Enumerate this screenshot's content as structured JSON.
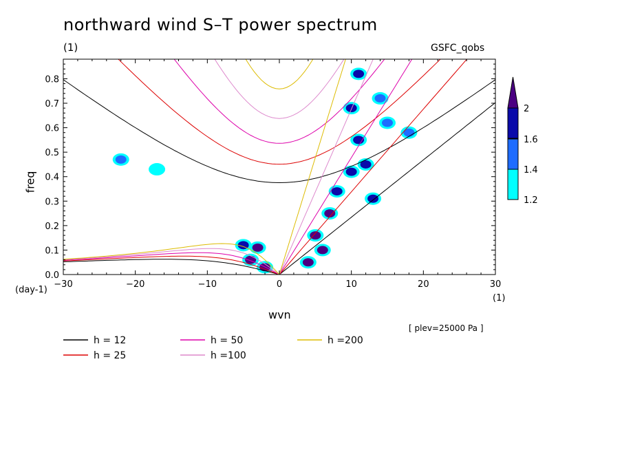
{
  "chart_data": {
    "type": "contour",
    "title": "northward wind S–T power spectrum",
    "title_units": "(1)",
    "dataset": "GSFC_qobs",
    "xlabel": "wvn",
    "x_units": "(1)",
    "ylabel": "freq",
    "y_units": "(day-1)",
    "xlim": [
      -30,
      30
    ],
    "ylim": [
      0,
      0.88
    ],
    "x_ticks": [
      -30,
      -20,
      -10,
      0,
      10,
      20,
      30
    ],
    "y_ticks": [
      0.0,
      0.1,
      0.2,
      0.3,
      0.4,
      0.5,
      0.6,
      0.7,
      0.8
    ],
    "level_note": "[ plev=25000 Pa ]",
    "colorbar": {
      "labels": [
        "1.2",
        "1.4",
        "1.6",
        "2"
      ],
      "colors": [
        "#00ffff",
        "#1e6cff",
        "#0a0aaa",
        "#4b0082"
      ]
    },
    "dispersion_curves": [
      {
        "label": "h = 12",
        "h": 12,
        "color": "#000000"
      },
      {
        "label": "h = 25",
        "h": 25,
        "color": "#dd0000"
      },
      {
        "label": "h = 50",
        "h": 50,
        "color": "#dd00aa"
      },
      {
        "label": "h =100",
        "h": 100,
        "color": "#dd88cc"
      },
      {
        "label": "h =200",
        "h": 200,
        "color": "#ddbb00"
      }
    ],
    "shaded_regions": [
      {
        "x": -4,
        "y": 0.06,
        "level": 2
      },
      {
        "x": -3,
        "y": 0.11,
        "level": 2
      },
      {
        "x": -5,
        "y": 0.12,
        "level": 1.6
      },
      {
        "x": -2,
        "y": 0.03,
        "level": 2
      },
      {
        "x": 4,
        "y": 0.05,
        "level": 2
      },
      {
        "x": 6,
        "y": 0.1,
        "level": 2
      },
      {
        "x": 5,
        "y": 0.16,
        "level": 2
      },
      {
        "x": 7,
        "y": 0.25,
        "level": 2
      },
      {
        "x": 8,
        "y": 0.34,
        "level": 1.6
      },
      {
        "x": 10,
        "y": 0.42,
        "level": 1.6
      },
      {
        "x": 11,
        "y": 0.55,
        "level": 1.6
      },
      {
        "x": 10,
        "y": 0.68,
        "level": 1.6
      },
      {
        "x": 11,
        "y": 0.82,
        "level": 1.6
      },
      {
        "x": 13,
        "y": 0.31,
        "level": 1.6
      },
      {
        "x": 12,
        "y": 0.45,
        "level": 1.6
      },
      {
        "x": 15,
        "y": 0.62,
        "level": 1.4
      },
      {
        "x": 14,
        "y": 0.72,
        "level": 1.4
      },
      {
        "x": 18,
        "y": 0.58,
        "level": 1.4
      },
      {
        "x": -22,
        "y": 0.47,
        "level": 1.4
      },
      {
        "x": -17,
        "y": 0.43,
        "level": 1.2
      }
    ]
  },
  "ui": {
    "title": "northward wind S–T power spectrum",
    "title_units": "(1)",
    "dataset": "GSFC_qobs",
    "xlabel": "wvn",
    "x_units": "(1)",
    "ylabel": "freq",
    "y_units": "(day-1)",
    "level_note": "[ plev=25000 Pa ]"
  }
}
